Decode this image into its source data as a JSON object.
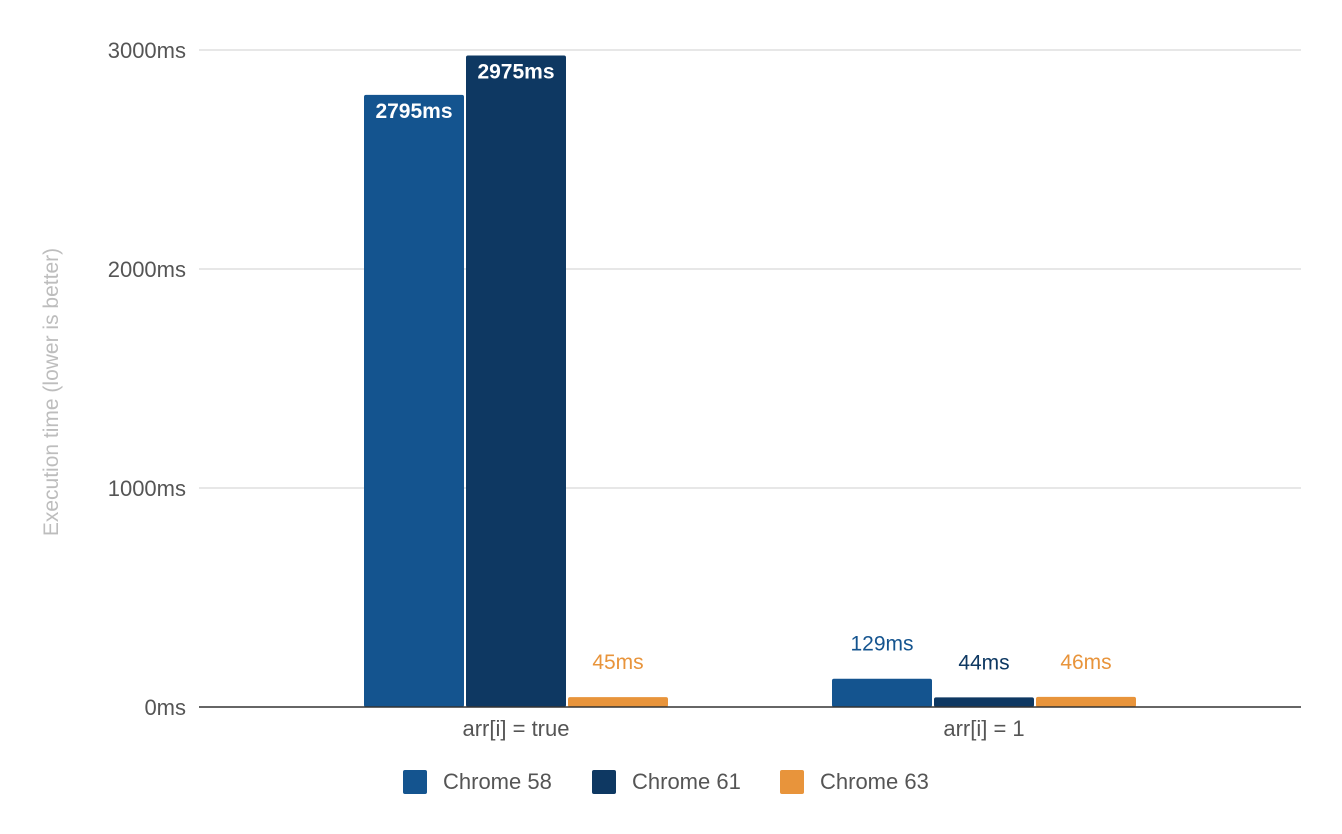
{
  "chart_data": {
    "type": "bar",
    "title": "",
    "xlabel": "",
    "ylabel": "Execution time (lower is better)",
    "categories": [
      "arr[i] = true",
      "arr[i] = 1"
    ],
    "series": [
      {
        "name": "Chrome 58",
        "values": [
          2795,
          129
        ],
        "labels": [
          "2795ms",
          "129ms"
        ],
        "color": "#14548f"
      },
      {
        "name": "Chrome 61",
        "values": [
          2975,
          44
        ],
        "labels": [
          "2975ms",
          "44ms"
        ],
        "color": "#0e3862"
      },
      {
        "name": "Chrome 63",
        "values": [
          45,
          46
        ],
        "labels": [
          "45ms",
          "46ms"
        ],
        "color": "#e8943b"
      }
    ],
    "ylim": [
      0,
      3000
    ],
    "yticks": [
      0,
      1000,
      2000,
      3000
    ],
    "ytick_labels": [
      "0ms",
      "1000ms",
      "2000ms",
      "3000ms"
    ],
    "grid": true,
    "legend_position": "bottom"
  }
}
